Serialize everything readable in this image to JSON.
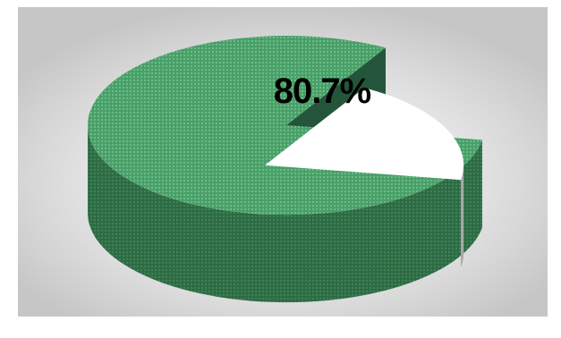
{
  "chart_data": {
    "type": "pie",
    "title": "",
    "slices": [
      {
        "value": 80.7,
        "label": "80.7%",
        "color": "#4a9e68",
        "side_color": "#2e6b44"
      },
      {
        "value": 19.3,
        "label": "",
        "color": "#ffffff",
        "side_color": "#a8a8a8"
      }
    ],
    "three_d": true,
    "exploded_slice_index": 1,
    "legend": "none"
  },
  "colors": {
    "background_center": "#ffffff",
    "background_edge": "#c6c6c6"
  }
}
